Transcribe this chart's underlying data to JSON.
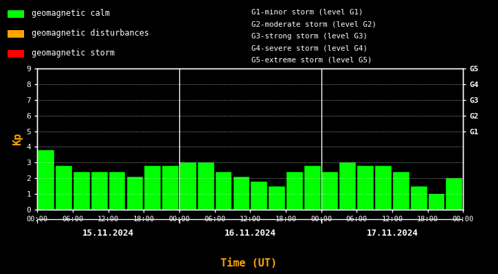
{
  "background_color": "#000000",
  "axis_color": "#ffffff",
  "label_color_kp": "#ffa500",
  "grid_color": "#ffffff",
  "days": [
    "15.11.2024",
    "16.11.2024",
    "17.11.2024"
  ],
  "kp_values": [
    3.8,
    2.8,
    2.4,
    2.4,
    2.4,
    2.1,
    2.8,
    2.8,
    3.0,
    3.0,
    2.4,
    2.1,
    1.8,
    1.5,
    2.4,
    2.8,
    2.4,
    3.0,
    2.8,
    2.8,
    2.4,
    1.5,
    1.0,
    2.0
  ],
  "bar_colors": [
    "#00ff00",
    "#00ff00",
    "#00ff00",
    "#00ff00",
    "#00ff00",
    "#00ff00",
    "#00ff00",
    "#00ff00",
    "#00ff00",
    "#00ff00",
    "#00ff00",
    "#00ff00",
    "#00ff00",
    "#00ff00",
    "#00ff00",
    "#00ff00",
    "#00ff00",
    "#00ff00",
    "#00ff00",
    "#00ff00",
    "#00ff00",
    "#00ff00",
    "#00ff00",
    "#00ff00"
  ],
  "ylim": [
    0,
    9
  ],
  "yticks": [
    0,
    1,
    2,
    3,
    4,
    5,
    6,
    7,
    8,
    9
  ],
  "right_labels": [
    {
      "y": 5,
      "text": "G1"
    },
    {
      "y": 6,
      "text": "G2"
    },
    {
      "y": 7,
      "text": "G3"
    },
    {
      "y": 8,
      "text": "G4"
    },
    {
      "y": 9,
      "text": "G5"
    }
  ],
  "legend_items": [
    {
      "color": "#00ff00",
      "label": "geomagnetic calm"
    },
    {
      "color": "#ffa500",
      "label": "geomagnetic disturbances"
    },
    {
      "color": "#ff0000",
      "label": "geomagnetic storm"
    }
  ],
  "legend2_items": [
    "G1-minor storm (level G1)",
    "G2-moderate storm (level G2)",
    "G3-strong storm (level G3)",
    "G4-severe storm (level G4)",
    "G5-extreme storm (level G5)"
  ],
  "ylabel": "Kp",
  "xlabel": "Time (UT)"
}
